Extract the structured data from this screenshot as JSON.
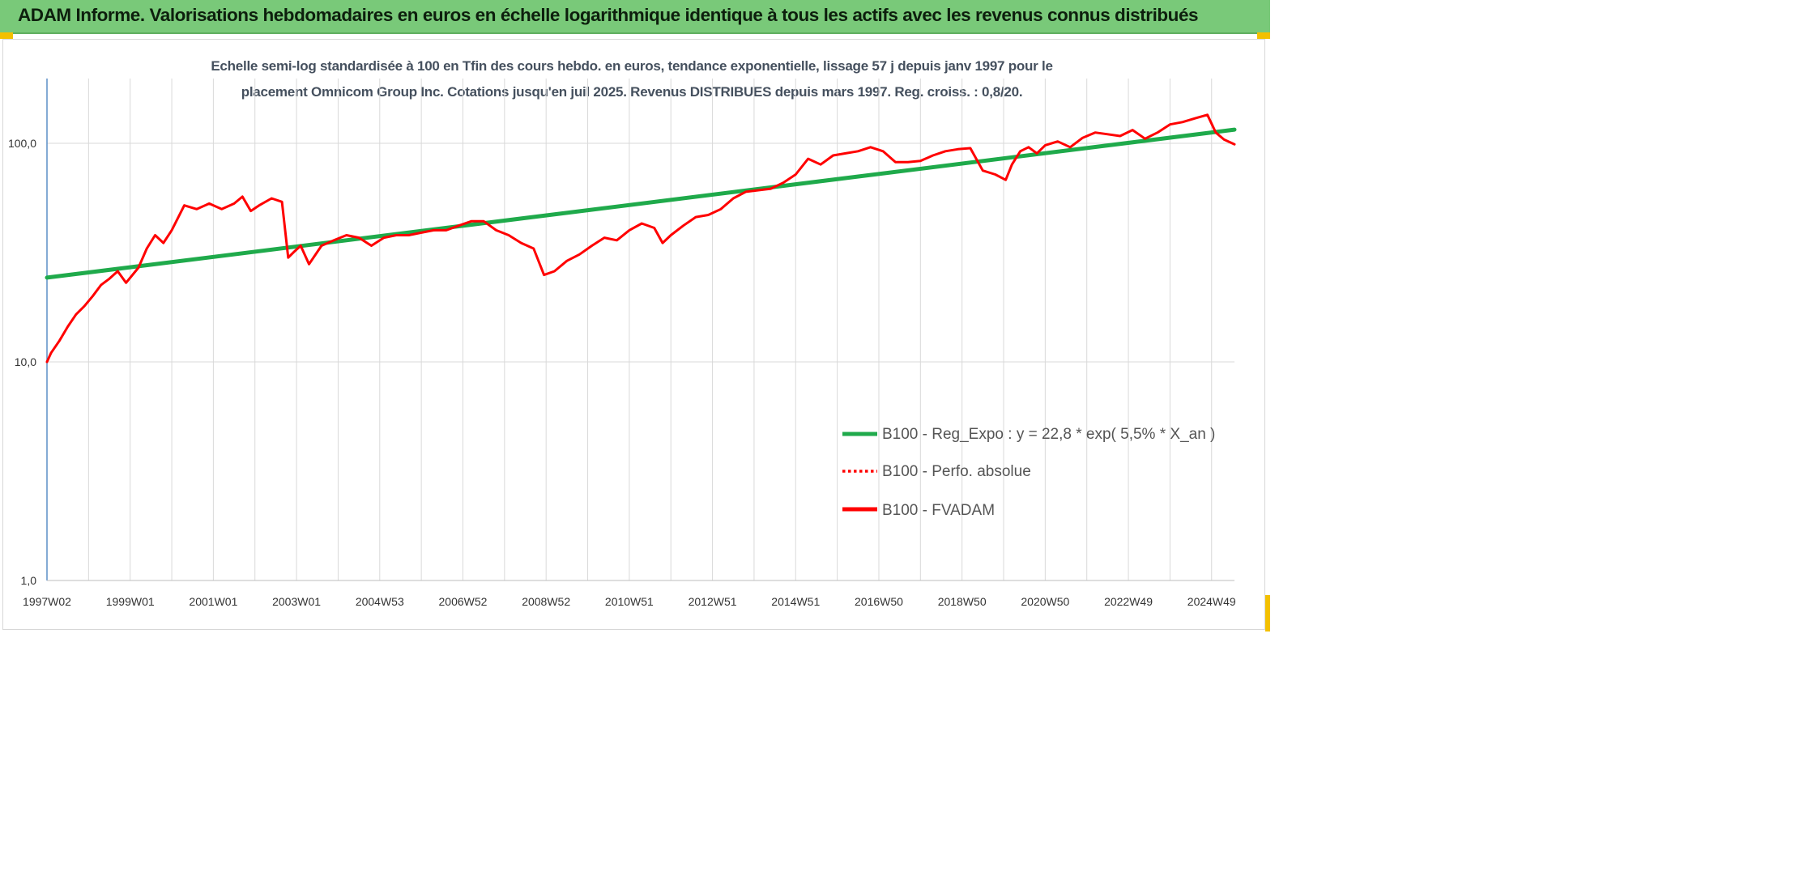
{
  "header": {
    "title": "ADAM Informe. Valorisations hebdomadaires en euros en échelle logarithmique identique à tous les actifs avec les revenus connus distribués"
  },
  "colors": {
    "header_bg": "#79c979",
    "regression": "#1faa4b",
    "fvadam": "#ff0000",
    "perfo": "#ff0000",
    "grid": "#d9d9d9"
  },
  "chart_data": {
    "type": "line",
    "title_line1": "Echelle semi-log standardisée à 100 en Tfin des cours hebdo. en euros, tendance exponentielle, lissage 57 j depuis janv 1997 pour le",
    "title_line2": "placement Omnicom Group Inc. Cotations jusqu'en juil 2025. Revenus DISTRIBUES depuis mars 1997. Reg. croiss. : 0,8/20.",
    "y_scale": "log",
    "ylim": [
      1,
      200
    ],
    "y_ticks": [
      1,
      10,
      100
    ],
    "y_tick_labels": [
      "1,0",
      "10,0",
      "100,0"
    ],
    "x_range": [
      1997.0,
      2025.55
    ],
    "x_ticks": [
      {
        "label": "1997W02",
        "x": 1997.0
      },
      {
        "label": "1999W01",
        "x": 1999.0
      },
      {
        "label": "2001W01",
        "x": 2001.0
      },
      {
        "label": "2003W01",
        "x": 2003.0
      },
      {
        "label": "2004W53",
        "x": 2005.0
      },
      {
        "label": "2006W52",
        "x": 2007.0
      },
      {
        "label": "2008W52",
        "x": 2009.0
      },
      {
        "label": "2010W51",
        "x": 2011.0
      },
      {
        "label": "2012W51",
        "x": 2013.0
      },
      {
        "label": "2014W51",
        "x": 2015.0
      },
      {
        "label": "2016W50",
        "x": 2017.0
      },
      {
        "label": "2018W50",
        "x": 2019.0
      },
      {
        "label": "2020W50",
        "x": 2021.0
      },
      {
        "label": "2022W49",
        "x": 2023.0
      },
      {
        "label": "2024W49",
        "x": 2025.0
      }
    ],
    "grid": true,
    "legend_position": "bottom-right",
    "series": [
      {
        "name": "B100 - Reg_Expo : y = 22,8 * exp( 5,5% *  X_an )",
        "style": "solid",
        "color": "#1faa4b",
        "x": [
          1997.0,
          2025.55
        ],
        "y": [
          24.3,
          115.5
        ]
      },
      {
        "name": "B100 - Perfo. absolue",
        "style": "dotted",
        "color": "#ff0000",
        "x": [],
        "y": []
      },
      {
        "name": "B100 - FVADAM",
        "style": "solid",
        "color": "#ff0000",
        "x": [
          1997.0,
          1997.1,
          1997.3,
          1997.5,
          1997.7,
          1997.9,
          1998.1,
          1998.3,
          1998.5,
          1998.7,
          1998.9,
          1999.2,
          1999.4,
          1999.6,
          1999.8,
          2000.0,
          2000.3,
          2000.6,
          2000.9,
          2001.2,
          2001.5,
          2001.7,
          2001.9,
          2002.1,
          2002.4,
          2002.65,
          2002.8,
          2002.95,
          2003.1,
          2003.3,
          2003.6,
          2003.9,
          2004.2,
          2004.5,
          2004.8,
          2005.1,
          2005.4,
          2005.7,
          2006.0,
          2006.3,
          2006.6,
          2006.9,
          2007.2,
          2007.5,
          2007.8,
          2008.1,
          2008.4,
          2008.7,
          2008.95,
          2009.2,
          2009.5,
          2009.8,
          2010.1,
          2010.4,
          2010.7,
          2011.0,
          2011.3,
          2011.6,
          2011.8,
          2012.0,
          2012.3,
          2012.6,
          2012.9,
          2013.2,
          2013.5,
          2013.8,
          2014.1,
          2014.4,
          2014.7,
          2015.0,
          2015.3,
          2015.6,
          2015.9,
          2016.2,
          2016.5,
          2016.8,
          2017.1,
          2017.4,
          2017.7,
          2018.0,
          2018.3,
          2018.6,
          2018.9,
          2019.2,
          2019.5,
          2019.8,
          2020.05,
          2020.2,
          2020.4,
          2020.6,
          2020.8,
          2021.0,
          2021.3,
          2021.6,
          2021.9,
          2022.2,
          2022.5,
          2022.8,
          2023.1,
          2023.4,
          2023.7,
          2024.0,
          2024.3,
          2024.6,
          2024.9,
          2025.1,
          2025.3,
          2025.55
        ],
        "y": [
          10,
          11,
          12.5,
          14.5,
          16.5,
          18,
          20,
          22.5,
          24,
          26,
          23,
          27,
          33,
          38,
          35,
          40,
          52,
          50,
          53,
          50,
          53,
          57,
          49,
          52,
          56,
          54,
          30,
          32,
          34,
          28,
          34,
          36,
          38,
          37,
          34,
          37,
          38,
          38,
          39,
          40,
          40,
          42,
          44,
          44,
          40,
          38,
          35,
          33,
          25,
          26,
          29,
          31,
          34,
          37,
          36,
          40,
          43,
          41,
          35,
          38,
          42,
          46,
          47,
          50,
          56,
          60,
          61,
          62,
          66,
          72,
          85,
          80,
          88,
          90,
          92,
          96,
          92,
          82,
          82,
          83,
          88,
          92,
          94,
          95,
          75,
          72,
          68,
          80,
          92,
          96,
          90,
          98,
          102,
          96,
          106,
          112,
          110,
          108,
          115,
          105,
          112,
          122,
          125,
          130,
          135,
          112,
          104,
          99
        ]
      }
    ]
  }
}
